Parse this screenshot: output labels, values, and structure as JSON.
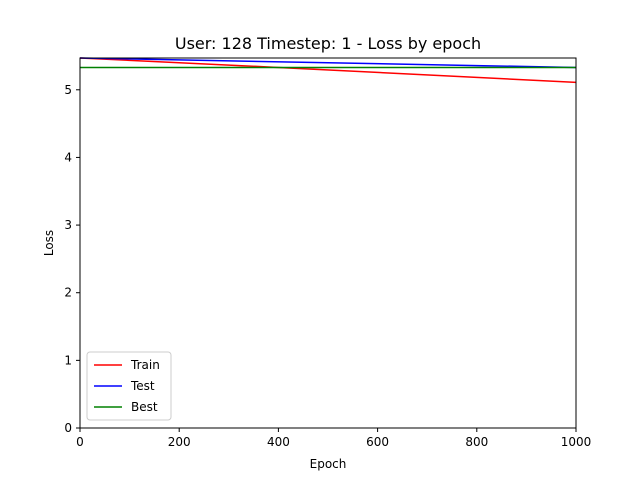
{
  "chart_data": {
    "type": "line",
    "title": "User: 128 Timestep: 1 - Loss by epoch",
    "xlabel": "Epoch",
    "ylabel": "Loss",
    "xlim": [
      0,
      1000
    ],
    "ylim": [
      0,
      5.47
    ],
    "xticks": [
      0,
      200,
      400,
      600,
      800,
      1000
    ],
    "yticks": [
      0,
      1,
      2,
      3,
      4,
      5
    ],
    "grid": false,
    "legend_position": "lower-left",
    "series": [
      {
        "name": "Train",
        "color": "#ff0000",
        "x": [
          0,
          400,
          1000
        ],
        "y": [
          5.47,
          5.33,
          5.11
        ]
      },
      {
        "name": "Test",
        "color": "#0000ff",
        "x": [
          0,
          1000
        ],
        "y": [
          5.47,
          5.33
        ]
      },
      {
        "name": "Best",
        "color": "#008000",
        "x": [
          0,
          1000
        ],
        "y": [
          5.33,
          5.33
        ]
      }
    ]
  }
}
